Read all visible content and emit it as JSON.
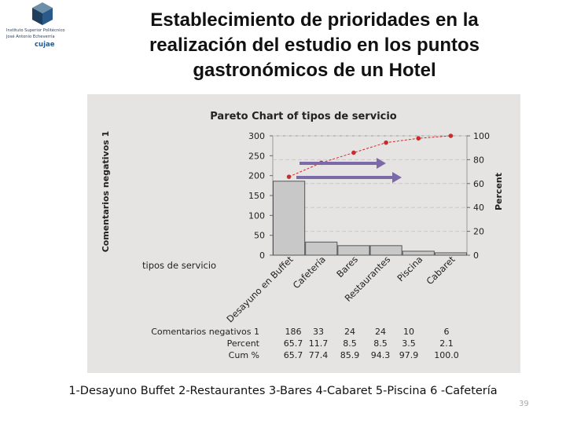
{
  "logo": {
    "lines": [
      "Instituto Superior Politécnico",
      "José Antonio Echeverría"
    ],
    "name": "cujae",
    "colors": {
      "dark": "#1f3d5c",
      "light": "#6d8fa8",
      "accent": "#2a5a8a"
    }
  },
  "slide": {
    "title": "Establecimiento de prioridades en la realización del estudio en los puntos gastronómicos de un Hotel",
    "footer": "1-Desayuno Buffet  2-Restaurantes  3-Bares  4-Cabaret  5-Piscina   6 -Cafetería",
    "page_number": "39"
  },
  "chart_data": {
    "type": "bar",
    "title": "Pareto Chart of tipos de servicio",
    "ylabel": "Comentarios negativos 1",
    "y2label": "Percent",
    "xlabel": "tipos de servicio",
    "ylim": [
      0,
      300
    ],
    "y2lim": [
      0,
      100
    ],
    "yticks": [
      0,
      50,
      100,
      150,
      200,
      250,
      300
    ],
    "y2ticks": [
      0,
      20,
      40,
      60,
      80,
      100
    ],
    "categories": [
      "Desayuno en Buffet",
      "Cafetería",
      "Bares",
      "Restaurantes",
      "Piscina",
      "Cabaret"
    ],
    "values": [
      186,
      33,
      24,
      24,
      10,
      6
    ],
    "cumulative_percent": [
      65.7,
      77.4,
      85.9,
      94.3,
      97.9,
      100.0
    ],
    "table": {
      "rows": [
        {
          "label": "Comentarios negativos 1",
          "cells": [
            "186",
            "33",
            "24",
            "24",
            "10",
            "6"
          ]
        },
        {
          "label": "Percent",
          "cells": [
            "65.7",
            "11.7",
            "8.5",
            "8.5",
            "3.5",
            "2.1"
          ]
        },
        {
          "label": "Cum %",
          "cells": [
            "65.7",
            "77.4",
            "85.9",
            "94.3",
            "97.9",
            "100.0"
          ]
        }
      ]
    },
    "colors": {
      "panel": "#e6e3e3",
      "bar": "#c8c8c8",
      "line": "#cc2b2b",
      "marker": "#cc2b2b",
      "arrow": "#7b69a8",
      "grid": "#c8c8c8"
    }
  }
}
